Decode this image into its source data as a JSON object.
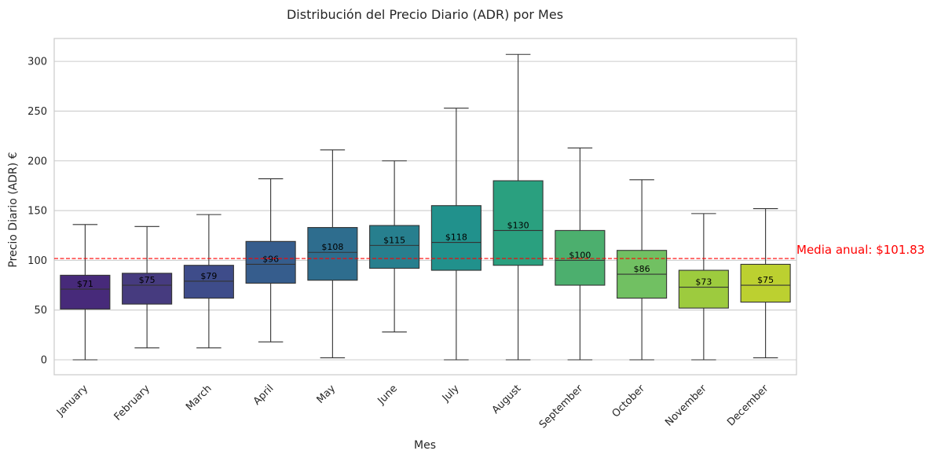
{
  "chart_data": {
    "type": "box",
    "title": "Distribución del Precio Diario (ADR) por Mes",
    "xlabel": "Mes",
    "ylabel": "Precio Diario (ADR) €",
    "ylim": [
      -15,
      323
    ],
    "yticks": [
      0,
      50,
      100,
      150,
      200,
      250,
      300
    ],
    "grid": "horizontal",
    "categories": [
      "January",
      "February",
      "March",
      "April",
      "May",
      "June",
      "July",
      "August",
      "September",
      "October",
      "November",
      "December"
    ],
    "boxes": [
      {
        "whisker_low": 0,
        "q1": 51,
        "median": 71,
        "q3": 85,
        "whisker_high": 136,
        "label": "$71",
        "color": "#472a7a"
      },
      {
        "whisker_low": 12,
        "q1": 56,
        "median": 75,
        "q3": 87,
        "whisker_high": 134,
        "label": "$75",
        "color": "#463b7f"
      },
      {
        "whisker_low": 12,
        "q1": 62,
        "median": 79,
        "q3": 95,
        "whisker_high": 146,
        "label": "$79",
        "color": "#3e4c8a"
      },
      {
        "whisker_low": 18,
        "q1": 77,
        "median": 96,
        "q3": 119,
        "whisker_high": 182,
        "label": "$96",
        "color": "#365d8d"
      },
      {
        "whisker_low": 2,
        "q1": 80,
        "median": 108,
        "q3": 133,
        "whisker_high": 211,
        "label": "$108",
        "color": "#2e6d8e"
      },
      {
        "whisker_low": 28,
        "q1": 92,
        "median": 115,
        "q3": 135,
        "whisker_high": 200,
        "label": "$115",
        "color": "#277f8e"
      },
      {
        "whisker_low": 0,
        "q1": 90,
        "median": 118,
        "q3": 155,
        "whisker_high": 253,
        "label": "$118",
        "color": "#21918c"
      },
      {
        "whisker_low": 0,
        "q1": 95,
        "median": 130,
        "q3": 180,
        "whisker_high": 307,
        "label": "$130",
        "color": "#2aa07f"
      },
      {
        "whisker_low": 0,
        "q1": 75,
        "median": 100,
        "q3": 130,
        "whisker_high": 213,
        "label": "$100",
        "color": "#4caf6e"
      },
      {
        "whisker_low": 0,
        "q1": 62,
        "median": 86,
        "q3": 110,
        "whisker_high": 181,
        "label": "$86",
        "color": "#71c062"
      },
      {
        "whisker_low": 0,
        "q1": 52,
        "median": 73,
        "q3": 90,
        "whisker_high": 147,
        "label": "$73",
        "color": "#9dcb3e"
      },
      {
        "whisker_low": 2,
        "q1": 58,
        "median": 75,
        "q3": 96,
        "whisker_high": 152,
        "label": "$75",
        "color": "#bcd030"
      }
    ],
    "reference_line": {
      "value": 101.83,
      "label": "Media anual: $101.83",
      "color": "#ff0000",
      "style": "dashed"
    }
  }
}
